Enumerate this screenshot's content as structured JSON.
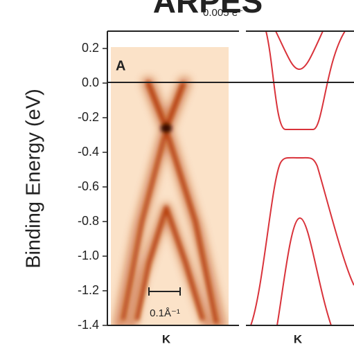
{
  "chart_data": {
    "type": "arpes",
    "title": "ARPES",
    "subtitle": "0.005 e⁻",
    "panel_label": "A",
    "ylabel": "Binding Energy (eV)",
    "ylim": [
      -1.4,
      0.3
    ],
    "yticks": [
      0.2,
      {
        "value": 0,
        "label": "0.0"
      },
      -0.2,
      -0.4,
      -0.6,
      -0.8,
      {
        "value": -1,
        "label": "-1.0"
      },
      -1.2,
      -1.4
    ],
    "scale_bar_label": "0.1Å⁻¹",
    "categories": [
      "K",
      "K"
    ]
  }
}
